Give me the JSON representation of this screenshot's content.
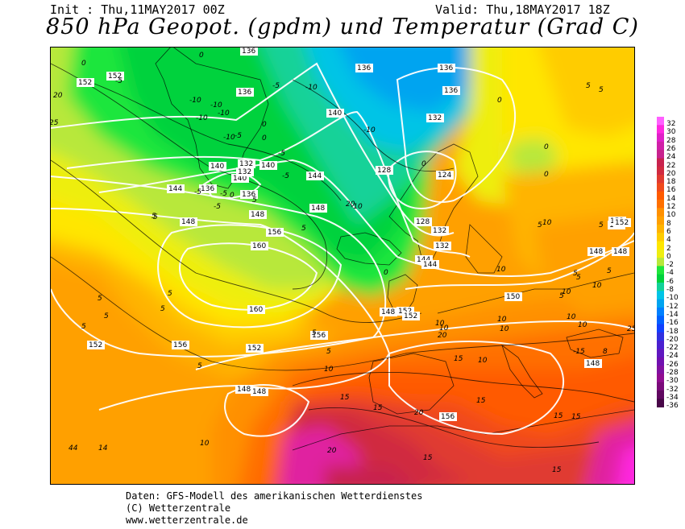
{
  "header": {
    "init": "Init : Thu,11MAY2017 00Z",
    "valid": "Valid: Thu,18MAY2017 18Z",
    "title": "850 hPa Geopot. (gpdm) und Temperatur (Grad C)"
  },
  "colors": {
    "m10": "#00a4f0",
    "m8": "#00c4e6",
    "m6": "#12d298",
    "m4": "#00d23c",
    "m2": "#1ee63c",
    "p0": "#b8e83a",
    "p2": "#eeee10",
    "p4": "#ffe600",
    "p6": "#ffcc00",
    "p8": "#ffb400",
    "p10": "#ffa000",
    "p12": "#ff9000",
    "p14": "#ff7000",
    "p16": "#ff5a00",
    "p18": "#f04a1c",
    "p20": "#e03a30",
    "p22": "#d02a40",
    "p24": "#c8224e",
    "p28": "#e020a0",
    "p32": "#ff28e0"
  },
  "geopotential_labels": [
    "136",
    "136",
    "136",
    "136",
    "136",
    "136",
    "136",
    "140",
    "140",
    "140",
    "140",
    "144",
    "144",
    "144",
    "144",
    "132",
    "132",
    "132",
    "132",
    "132",
    "128",
    "128",
    "124",
    "148",
    "148",
    "148",
    "148",
    "148",
    "148",
    "148",
    "148",
    "148",
    "152",
    "152",
    "152",
    "152",
    "152",
    "152",
    "152",
    "152",
    "152",
    "156",
    "156",
    "156",
    "156",
    "160",
    "160",
    "150"
  ],
  "temperature_labels": [
    "0",
    "0",
    "0",
    "0",
    "0",
    "0",
    "0",
    "0",
    "0",
    "0",
    "-5",
    "-5",
    "-5",
    "-5",
    "-5",
    "-5",
    "-5",
    "-5",
    "-10",
    "-10",
    "-10",
    "-10",
    "-10",
    "-10",
    "-10",
    "-10",
    "5",
    "5",
    "5",
    "5",
    "5",
    "5",
    "5",
    "5",
    "5",
    "5",
    "5",
    "5",
    "5",
    "5",
    "5",
    "5",
    "5",
    "5",
    "5",
    "5",
    "10",
    "10",
    "10",
    "10",
    "10",
    "10",
    "10",
    "10",
    "10",
    "10",
    "10",
    "10",
    "10",
    "15",
    "15",
    "15",
    "15",
    "15",
    "15",
    "15",
    "15",
    "20",
    "20",
    "20",
    "20",
    "20",
    "25",
    "25",
    "-15",
    "8",
    "44",
    "14"
  ],
  "scale": {
    "labels": [
      "32",
      "30",
      "28",
      "26",
      "24",
      "22",
      "20",
      "18",
      "16",
      "14",
      "12",
      "10",
      "8",
      "6",
      "4",
      "2",
      "0",
      "-2",
      "-4",
      "-6",
      "-8",
      "-10",
      "-12",
      "-14",
      "-16",
      "-18",
      "-20",
      "-22",
      "-24",
      "-26",
      "-28",
      "-30",
      "-32",
      "-34",
      "-36"
    ],
    "colors": [
      "#ff60ff",
      "#ff28e0",
      "#e020c8",
      "#d020a8",
      "#c8228e",
      "#c8224e",
      "#d02a40",
      "#e03a30",
      "#f04a1c",
      "#ff5a00",
      "#ff7000",
      "#ff9000",
      "#ffa000",
      "#ffb400",
      "#ffcc00",
      "#ffe600",
      "#eeee10",
      "#b8e83a",
      "#1ee63c",
      "#00d23c",
      "#12d298",
      "#00c4e6",
      "#00a4f0",
      "#0080ff",
      "#0060ff",
      "#1040ff",
      "#3030e0",
      "#4a20d0",
      "#6018c0",
      "#7010b0",
      "#8010a0",
      "#900c90",
      "#7a0a7a",
      "#600860",
      "#480648"
    ]
  },
  "credits": {
    "line1": "Daten: GFS-Modell des amerikanischen Wetterdienstes",
    "line2": "(C) Wetterzentrale",
    "line3": "www.wetterzentrale.de"
  }
}
